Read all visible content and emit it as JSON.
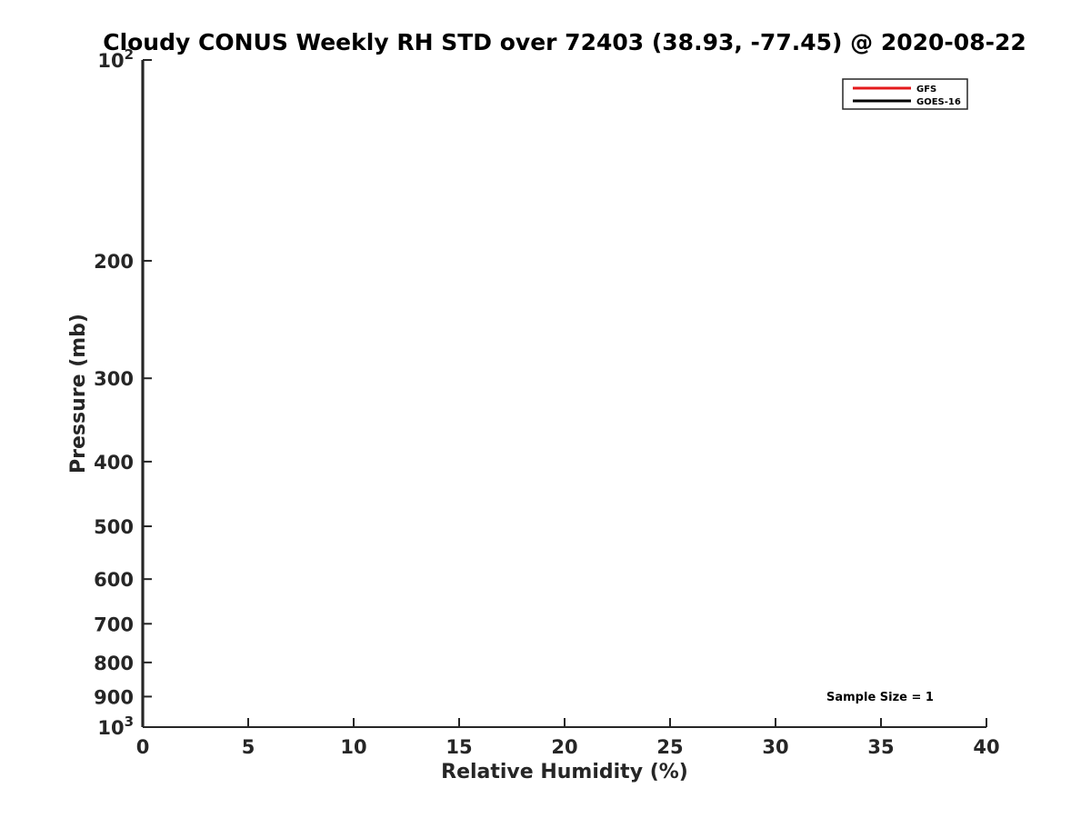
{
  "chart_data": {
    "type": "line",
    "title": "Cloudy CONUS Weekly RH STD over 72403 (38.93, -77.45) @ 2020-08-22",
    "xlabel": "Relative Humidity (%)",
    "ylabel": "Pressure (mb)",
    "xlim": [
      0,
      40
    ],
    "ylim": [
      100,
      1000
    ],
    "y_scale": "log",
    "y_reversed": true,
    "grid": false,
    "legend_position": "top-right",
    "x_ticks": [
      0,
      5,
      10,
      15,
      20,
      25,
      30,
      35,
      40
    ],
    "x_tick_labels": [
      "0",
      "5",
      "10",
      "15",
      "20",
      "25",
      "30",
      "35",
      "40"
    ],
    "y_ticks": [
      {
        "value": 100,
        "base": "10",
        "exp": "2"
      },
      {
        "value": 200,
        "label": "200"
      },
      {
        "value": 300,
        "label": "300"
      },
      {
        "value": 400,
        "label": "400"
      },
      {
        "value": 500,
        "label": "500"
      },
      {
        "value": 600,
        "label": "600"
      },
      {
        "value": 700,
        "label": "700"
      },
      {
        "value": 800,
        "label": "800"
      },
      {
        "value": 900,
        "label": "900"
      },
      {
        "value": 1000,
        "base": "10",
        "exp": "3"
      }
    ],
    "series": [
      {
        "name": "GFS",
        "color": "#e41a1c",
        "points": [
          {
            "x": 0,
            "y": 100
          },
          {
            "x": 0,
            "y": 1000
          }
        ]
      },
      {
        "name": "GOES-16",
        "color": "#000000",
        "points": [
          {
            "x": 0,
            "y": 100
          },
          {
            "x": 0,
            "y": 1000
          }
        ]
      }
    ],
    "annotations": [
      {
        "text": "Sample Size = 1",
        "x": 35,
        "y": 900
      }
    ]
  }
}
